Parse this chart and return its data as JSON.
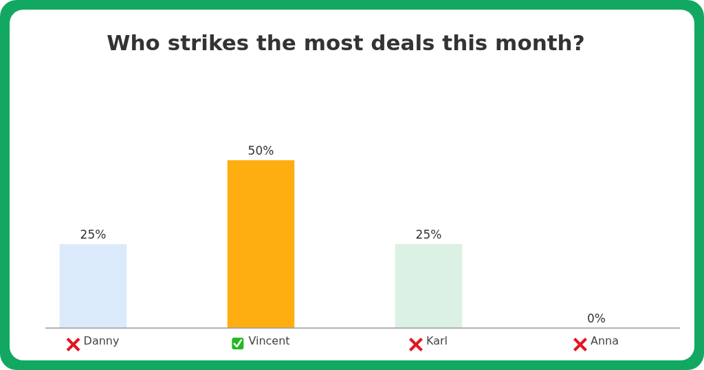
{
  "chart_data": {
    "type": "bar",
    "title": "Who strikes the most deals this month?",
    "categories": [
      "Danny",
      "Vincent",
      "Karl",
      "Anna"
    ],
    "values": [
      25,
      50,
      25,
      0
    ],
    "colors": [
      "#dbeafa",
      "#ffae12",
      "#daf1e3",
      "#fbe3e3"
    ],
    "value_labels": [
      "25%",
      "50%",
      "25%",
      "0%"
    ]
  }
}
